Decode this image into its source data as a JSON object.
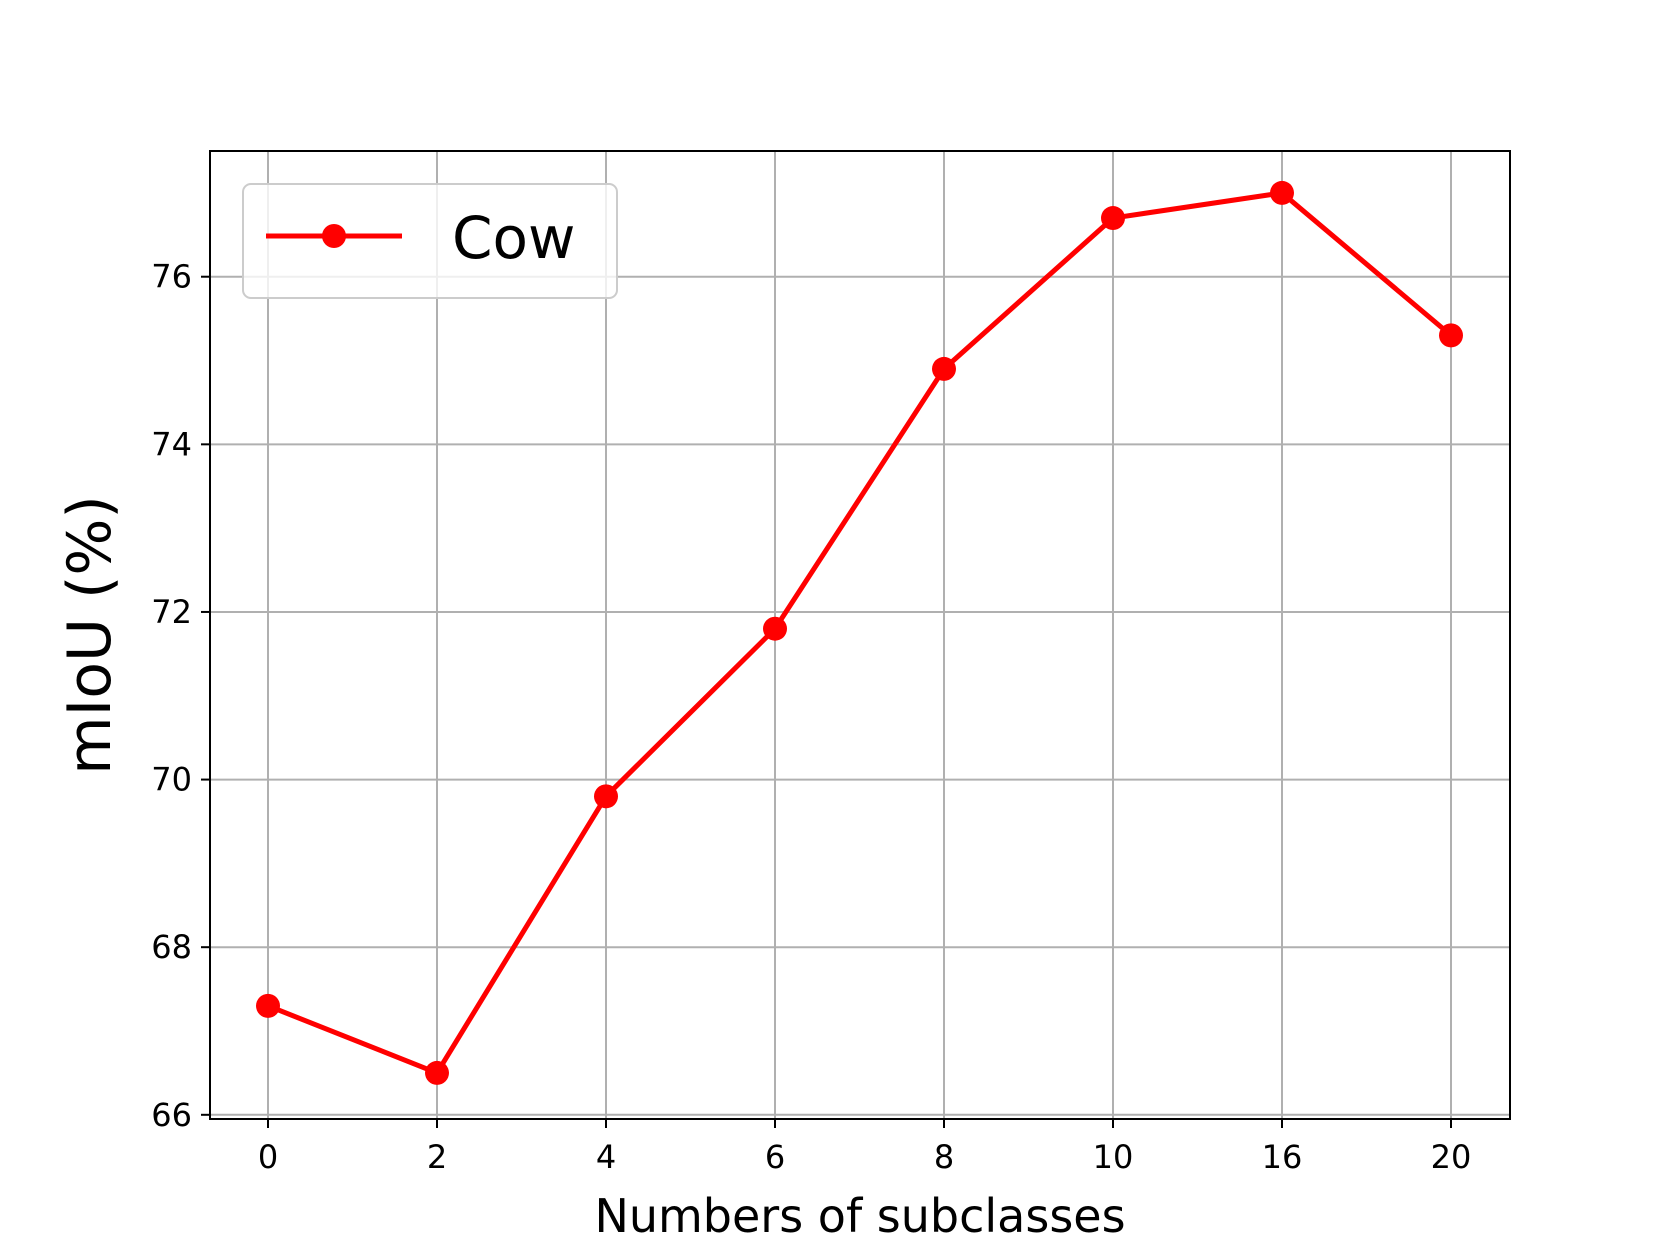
{
  "chart_data": {
    "type": "line",
    "categories": [
      "0",
      "2",
      "4",
      "6",
      "8",
      "10",
      "16",
      "20"
    ],
    "series": [
      {
        "name": "Cow",
        "values": [
          67.3,
          66.5,
          69.8,
          71.8,
          74.9,
          76.7,
          77.0,
          75.3
        ],
        "color": "#ff0000",
        "marker": "circle"
      }
    ],
    "title": "",
    "xlabel": "Numbers of subclasses",
    "ylabel": "mIoU (%)",
    "ylim": [
      65.95,
      77.5
    ],
    "yticks": [
      "66",
      "68",
      "70",
      "72",
      "74",
      "76"
    ],
    "grid": true,
    "legend_position": "top-left"
  }
}
